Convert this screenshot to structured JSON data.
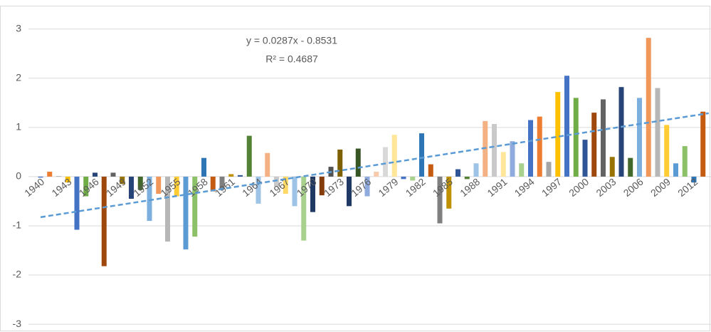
{
  "chart_data": {
    "type": "bar",
    "categories": [
      "1940",
      null,
      null,
      "1943",
      null,
      null,
      "1946",
      null,
      null,
      "1949",
      null,
      null,
      "1952",
      null,
      null,
      "1955",
      null,
      null,
      "1958",
      null,
      null,
      "1961",
      null,
      null,
      "1964",
      null,
      null,
      "1967",
      null,
      null,
      "1970",
      null,
      null,
      "1973",
      null,
      null,
      "1976",
      null,
      null,
      "1979",
      null,
      null,
      "1982",
      null,
      null,
      "1985",
      null,
      null,
      "1988",
      null,
      null,
      "1991",
      null,
      null,
      "1994",
      null,
      null,
      "1997",
      null,
      null,
      "2000",
      null,
      null,
      "2003",
      null,
      null,
      "2006",
      null,
      null,
      "2009",
      null,
      null,
      "2012",
      null
    ],
    "values": [
      -0.02,
      0.1,
      0.01,
      -0.12,
      -1.08,
      -0.4,
      0.08,
      -1.82,
      0.08,
      -0.15,
      -0.45,
      -0.27,
      -0.9,
      -0.35,
      -1.32,
      -0.4,
      -1.48,
      -1.22,
      0.38,
      -0.3,
      -0.25,
      0.05,
      0.03,
      0.83,
      -0.55,
      0.48,
      -0.2,
      -0.35,
      -0.6,
      -1.3,
      -0.72,
      -0.38,
      0.2,
      0.55,
      -0.6,
      0.57,
      -0.4,
      0.1,
      0.6,
      0.85,
      -0.05,
      -0.08,
      0.88,
      0.25,
      -0.95,
      -0.65,
      0.15,
      -0.05,
      0.27,
      1.13,
      1.07,
      0.5,
      0.72,
      0.27,
      1.15,
      1.22,
      0.3,
      1.72,
      2.05,
      1.6,
      0.75,
      1.3,
      1.57,
      0.4,
      1.82,
      0.38,
      1.6,
      2.82,
      1.8,
      1.05,
      0.27,
      0.62,
      -0.12,
      1.32
    ],
    "colors": [
      "#4472c4",
      "#ed7d31",
      "#a5a5a5",
      "#ffc000",
      "#4472c4",
      "#70ad47",
      "#264478",
      "#9e480e",
      "#636363",
      "#997300",
      "#264478",
      "#43682b",
      "#7cafdd",
      "#f1975a",
      "#b7b7b7",
      "#ffcd33",
      "#5b9bd5",
      "#8cc168",
      "#2e75b6",
      "#c55a11",
      "#7f7f7f",
      "#bf9000",
      "#2f5597",
      "#548235",
      "#9dc3e6",
      "#f4b183",
      "#c9c9c9",
      "#ffd966",
      "#9dc3e6",
      "#a9d18e",
      "#203864",
      "#843c0c",
      "#525252",
      "#7f6000",
      "#1f3864",
      "#375623",
      "#8faadc",
      "#f8cbad",
      "#d9d9d9",
      "#ffe699",
      "#4472c4",
      "#a9d18e",
      "#2e75b6",
      "#c55a11",
      "#7f7f7f",
      "#bf9000",
      "#2f5597",
      "#548235",
      "#9dc3e6",
      "#f4b183",
      "#c9c9c9",
      "#ffe699",
      "#8faadc",
      "#a9d18e",
      "#4472c4",
      "#ed7d31",
      "#a5a5a5",
      "#ffc000",
      "#4472c4",
      "#70ad47",
      "#2f5597",
      "#9e480e",
      "#636363",
      "#997300",
      "#264478",
      "#43682b",
      "#7cafdd",
      "#f1975a",
      "#b7b7b7",
      "#ffcd33",
      "#5b9bd5",
      "#8cc168",
      "#2e75b6",
      "#c55a11"
    ],
    "ylim": [
      -3.1,
      3.3
    ],
    "yticks": [
      -3,
      -2,
      -1,
      0,
      1,
      2,
      3
    ],
    "grid": true,
    "trendline": {
      "slope": 0.0287,
      "intercept": -0.8531,
      "color": "#5b9bd5",
      "equation": "y = 0.0287x - 0.8531",
      "r_squared": "R² = 0.4687"
    }
  }
}
